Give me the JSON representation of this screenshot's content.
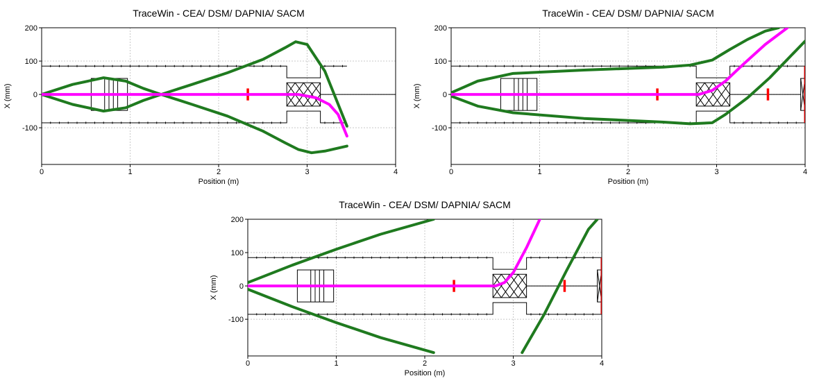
{
  "chart_data": [
    {
      "type": "line",
      "title": "TraceWin - CEA/ DSM/ DAPNIA/ SACM",
      "xlabel": "Position (m)",
      "ylabel": "X (mm)",
      "xlim": [
        0,
        4
      ],
      "ylim": [
        -210,
        200
      ],
      "xticks": [
        "0",
        "1",
        "2",
        "3",
        "4"
      ],
      "yticks": [
        "-100",
        "0",
        "100",
        "200"
      ],
      "grid": true,
      "colors": {
        "envelope": "#1f7a1f",
        "centroid": "#ff00ff",
        "monitor": "#ff0000",
        "aperture": "#000000"
      },
      "series": [
        {
          "values_x": [
            0,
            0.35,
            0.7,
            0.95,
            1.15,
            1.35,
            1.7,
            2.1,
            2.5,
            2.75,
            2.87,
            3.0,
            3.2,
            3.45
          ],
          "values_y": [
            0,
            30,
            50,
            40,
            18,
            0,
            30,
            65,
            105,
            140,
            158,
            150,
            70,
            -95
          ]
        },
        {
          "values_x": [
            0,
            0.35,
            0.7,
            0.95,
            1.15,
            1.35,
            1.7,
            2.1,
            2.5,
            2.75,
            2.9,
            3.05,
            3.2,
            3.45
          ],
          "values_y": [
            0,
            -30,
            -50,
            -40,
            -18,
            0,
            -30,
            -65,
            -110,
            -145,
            -165,
            -175,
            -170,
            -155
          ]
        },
        {
          "values_x": [
            0,
            2.9,
            3.1,
            3.25,
            3.35,
            3.45
          ],
          "values_y": [
            0,
            0,
            -10,
            -30,
            -60,
            -125
          ]
        }
      ],
      "aperture_mm": 85,
      "monitors_m": [
        2.33
      ],
      "elements": [
        {
          "kind": "quadrupole",
          "x0": 0.56,
          "x1": 0.97,
          "half_height_mm": 48
        },
        {
          "kind": "rfq",
          "x0": 2.77,
          "x1": 3.15,
          "half_height_mm": 50
        }
      ]
    },
    {
      "type": "line",
      "title": "TraceWin - CEA/ DSM/ DAPNIA/ SACM",
      "xlabel": "Position (m)",
      "ylabel": "X (mm)",
      "xlim": [
        0,
        4
      ],
      "ylim": [
        -210,
        200
      ],
      "xticks": [
        "0",
        "1",
        "2",
        "3",
        "4"
      ],
      "yticks": [
        "-100",
        "0",
        "100",
        "200"
      ],
      "grid": true,
      "colors": {
        "envelope": "#1f7a1f",
        "centroid": "#ff00ff",
        "monitor": "#ff0000",
        "aperture": "#000000"
      },
      "series": [
        {
          "values_x": [
            0,
            0.3,
            0.7,
            1.5,
            2.4,
            2.7,
            2.95,
            3.15,
            3.35,
            3.55,
            3.7
          ],
          "values_y": [
            5,
            40,
            63,
            73,
            82,
            88,
            103,
            135,
            165,
            190,
            200
          ]
        },
        {
          "values_x": [
            0,
            0.3,
            0.7,
            1.5,
            2.4,
            2.7,
            2.95,
            3.1,
            3.35,
            3.6,
            4.0
          ],
          "values_y": [
            -5,
            -35,
            -55,
            -72,
            -83,
            -88,
            -85,
            -60,
            -10,
            50,
            160
          ]
        },
        {
          "values_x": [
            0,
            2.8,
            2.95,
            3.1,
            3.3,
            3.55,
            3.8
          ],
          "values_y": [
            0,
            0,
            12,
            40,
            90,
            150,
            200
          ]
        }
      ],
      "aperture_mm": 85,
      "monitors_m": [
        2.33,
        3.58
      ],
      "elements": [
        {
          "kind": "quadrupole",
          "x0": 0.56,
          "x1": 0.97,
          "half_height_mm": 48
        },
        {
          "kind": "rfq",
          "x0": 2.77,
          "x1": 3.15,
          "half_height_mm": 50
        },
        {
          "kind": "end",
          "x0": 3.95,
          "x1": 4.0,
          "half_height_mm": 48
        }
      ]
    },
    {
      "type": "line",
      "title": "TraceWin - CEA/ DSM/ DAPNIA/ SACM",
      "xlabel": "Position (m)",
      "ylabel": "X (mm)",
      "xlim": [
        0,
        4
      ],
      "ylim": [
        -210,
        200
      ],
      "xticks": [
        "0",
        "1",
        "2",
        "3",
        "4"
      ],
      "yticks": [
        "-100",
        "0",
        "100",
        "200"
      ],
      "grid": true,
      "colors": {
        "envelope": "#1f7a1f",
        "centroid": "#ff00ff",
        "monitor": "#ff0000",
        "aperture": "#000000"
      },
      "series": [
        {
          "values_x": [
            0,
            0.5,
            1.0,
            1.5,
            2.1
          ],
          "values_y": [
            10,
            62,
            110,
            155,
            200
          ]
        },
        {
          "values_x": [
            0,
            0.5,
            1.0,
            1.5,
            2.1
          ],
          "values_y": [
            -10,
            -62,
            -110,
            -155,
            -200
          ]
        },
        {
          "values_x": [
            3.1,
            3.35,
            3.6,
            3.85,
            3.95
          ],
          "values_y": [
            -200,
            -85,
            45,
            170,
            200
          ]
        },
        {
          "values_x": [
            0,
            2.8,
            2.9,
            3.0,
            3.15,
            3.3
          ],
          "values_y": [
            0,
            0,
            10,
            40,
            115,
            200
          ]
        }
      ],
      "aperture_mm": 85,
      "monitors_m": [
        2.33,
        3.58
      ],
      "elements": [
        {
          "kind": "quadrupole",
          "x0": 0.56,
          "x1": 0.97,
          "half_height_mm": 48
        },
        {
          "kind": "rfq",
          "x0": 2.77,
          "x1": 3.15,
          "half_height_mm": 50
        },
        {
          "kind": "end",
          "x0": 3.95,
          "x1": 4.0,
          "half_height_mm": 48
        }
      ]
    }
  ]
}
